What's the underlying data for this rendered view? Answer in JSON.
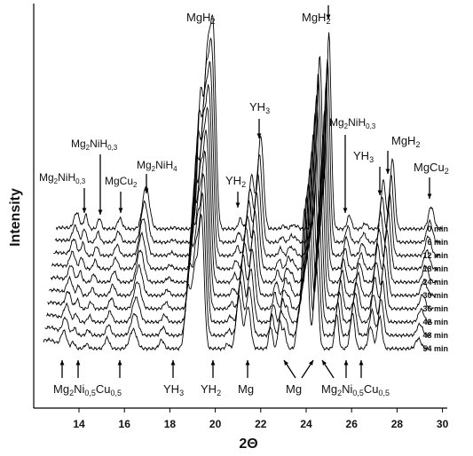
{
  "chart_data": {
    "type": "line",
    "title": "",
    "xlabel": "2Θ",
    "ylabel": "Intensity",
    "xlim": [
      12.5,
      30.5
    ],
    "x_ticks": [
      14,
      16,
      18,
      20,
      22,
      24,
      26,
      28,
      30
    ],
    "grid": false,
    "legend": "none",
    "series": [
      {
        "name": "0 min"
      },
      {
        "name": "6 min"
      },
      {
        "name": "12 min"
      },
      {
        "name": "18 min"
      },
      {
        "name": "24 min"
      },
      {
        "name": "30 min"
      },
      {
        "name": "36 min"
      },
      {
        "name": "42 min"
      },
      {
        "name": "48 min"
      },
      {
        "name": "54 min"
      }
    ],
    "peaks_top": [
      {
        "x": 14.3,
        "label": "Mg2NiH0.3"
      },
      {
        "x": 14.9,
        "label": "Mg2NiH0.3"
      },
      {
        "x": 15.8,
        "label": "MgCu2"
      },
      {
        "x": 17.0,
        "label": "Mg2NiH4"
      },
      {
        "x": 19.9,
        "label": "MgH2"
      },
      {
        "x": 21.1,
        "label": "YH2"
      },
      {
        "x": 22.0,
        "label": "YH3"
      },
      {
        "x": 25.0,
        "label": "MgH2"
      },
      {
        "x": 25.9,
        "label": "Mg2NiH0.3"
      },
      {
        "x": 27.4,
        "label": "YH3"
      },
      {
        "x": 27.8,
        "label": "MgH2"
      },
      {
        "x": 29.5,
        "label": "MgCu2"
      }
    ],
    "peaks_bottom": [
      {
        "x": 13.2,
        "label": "Mg2Ni0.5Cu0.5"
      },
      {
        "x": 13.9,
        "label": "Mg2Ni0.5Cu0.5"
      },
      {
        "x": 15.8,
        "label": "Mg2Ni0.5Cu0.5"
      },
      {
        "x": 18.2,
        "label": "YH3"
      },
      {
        "x": 20.0,
        "label": "YH2"
      },
      {
        "x": 21.6,
        "label": "Mg"
      },
      {
        "x": 23.4,
        "label": "Mg"
      },
      {
        "x": 24.5,
        "label": "Mg"
      },
      {
        "x": 25.9,
        "label": "Mg2Ni0.5Cu0.5"
      },
      {
        "x": 26.6,
        "label": "Mg2Ni0.5Cu0.5"
      }
    ]
  },
  "labels": {
    "mgh2_a": "MgH",
    "mgh2_a_sub": "2",
    "mgh2_b": "MgH",
    "mgh2_b_sub": "2",
    "mgh2_c": "MgH",
    "mgh2_c_sub": "2",
    "yh3_a": "YH",
    "yh3_a_sub": "3",
    "yh3_b": "YH",
    "yh3_b_sub": "3",
    "yh2_a": "YH",
    "yh2_a_sub": "2",
    "mg2nih03_a": "Mg",
    "mg2nih03_a_s1": "2",
    "mg2nih03_a_mid": "NiH",
    "mg2nih03_a_s2": "0,3",
    "mg2nih03_b": "Mg",
    "mg2nih03_b_s1": "2",
    "mg2nih03_b_mid": "NiH",
    "mg2nih03_b_s2": "0,3",
    "mg2nih03_c": "Mg",
    "mg2nih03_c_s1": "2",
    "mg2nih03_c_mid": "NiH",
    "mg2nih03_c_s2": "0,3",
    "mgcu2_a": "MgCu",
    "mgcu2_a_sub": "2",
    "mgcu2_b": "MgCu",
    "mgcu2_b_sub": "2",
    "mg2nih4": "Mg",
    "mg2nih4_s1": "2",
    "mg2nih4_mid": "NiH",
    "mg2nih4_s2": "4",
    "b_mgnicu_a": "Mg",
    "b_mgnicu_a_s1": "2",
    "b_mgnicu_a_mid": "Ni",
    "b_mgnicu_a_s2": "0,5",
    "b_mgnicu_a_mid2": "Cu",
    "b_mgnicu_a_s3": "0,5",
    "b_yh3": "YH",
    "b_yh3_sub": "3",
    "b_yh2": "YH",
    "b_yh2_sub": "2",
    "b_mg_a": "Mg",
    "b_mg_b": "Mg",
    "b_mgnicu_b": "Mg",
    "b_mgnicu_b_s1": "2",
    "b_mgnicu_b_mid": "Ni",
    "b_mgnicu_b_s2": "0,5",
    "b_mgnicu_b_mid2": "Cu",
    "b_mgnicu_b_s3": "0,5"
  },
  "time_labels": [
    "0 min",
    "6 min",
    "12 min",
    "18 min",
    "24 min",
    "30 min",
    "36 min",
    "42 min",
    "48 min",
    "54 min"
  ],
  "tick_labels": [
    "14",
    "16",
    "18",
    "20",
    "22",
    "24",
    "26",
    "28",
    "30"
  ]
}
